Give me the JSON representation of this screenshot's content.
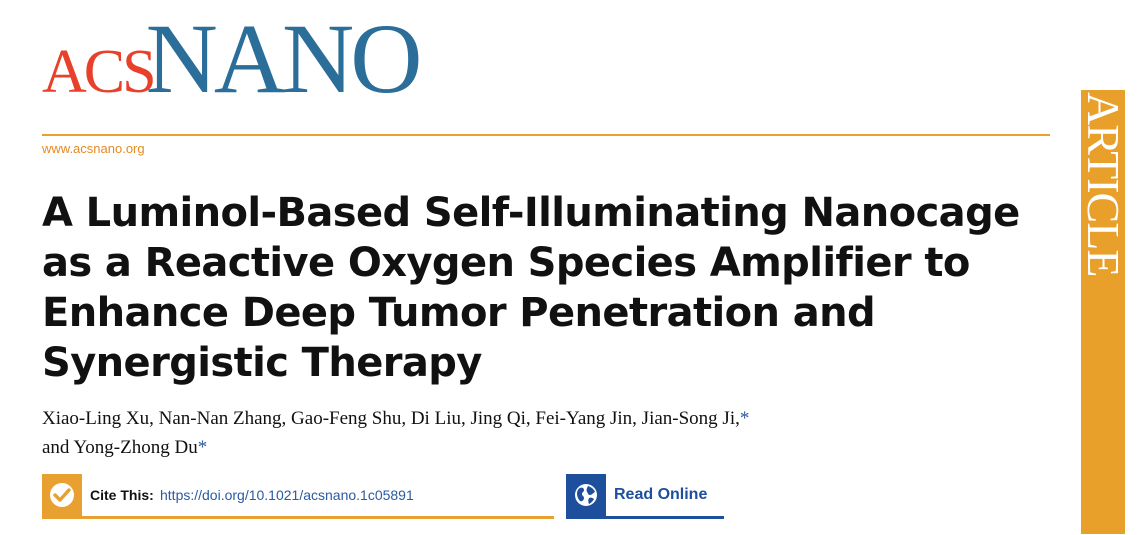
{
  "logo": {
    "acs": "ACS",
    "nano": "NANO"
  },
  "website": "www.acsnano.org",
  "side_label": "ARTICLE",
  "title_lines": [
    "A Luminol-Based Self-Illuminating Nanocage",
    "as a Reactive Oxygen Species Amplifier to",
    "Enhance Deep Tumor Penetration and",
    "Synergistic Therapy"
  ],
  "authors": {
    "line1": "Xiao-Ling Xu, Nan-Nan Zhang, Gao-Feng Shu, Di Liu, Jing Qi, Fei-Yang Jin, Jian-Song Ji,",
    "line1_star": "*",
    "line2": "and Yong-Zhong Du",
    "line2_star": "*"
  },
  "cite": {
    "label": "Cite This:",
    "doi": "https://doi.org/10.1021/acsnano.1c05891",
    "icon": "checkmark-icon"
  },
  "read_online": {
    "label": "Read Online",
    "icon": "globe-icon"
  },
  "colors": {
    "acs_red": "#e8402a",
    "nano_blue": "#2b6e9a",
    "accent_orange": "#e8a030",
    "link_blue": "#2b5ba0",
    "read_blue": "#1e4f9c"
  }
}
